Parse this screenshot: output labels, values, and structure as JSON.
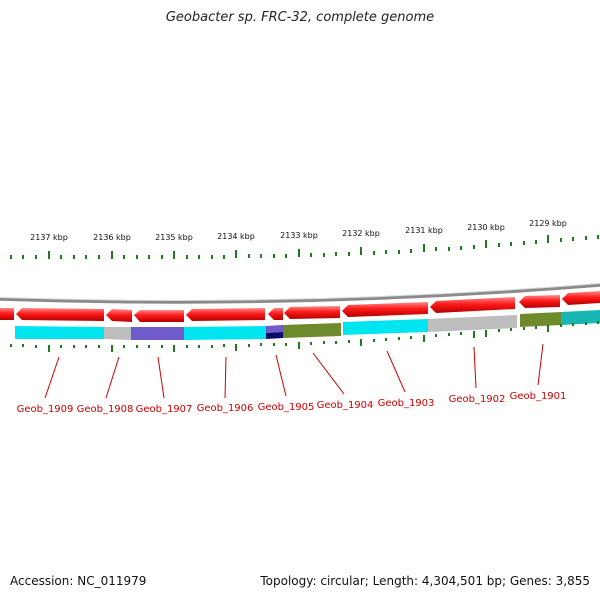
{
  "title": "Geobacter sp. FRC-32, complete genome",
  "footer": {
    "accession": "Accession: NC_011979",
    "summary": "Topology: circular; Length: 4,304,501 bp; Genes: 3,855"
  },
  "colors": {
    "backbone": "#8a8a8a",
    "forward_gene": "#ff1a1a",
    "tick": "#1f7a1f",
    "label": "#cc0000",
    "cyan": "#00e5f0",
    "gray": "#bdbdbd",
    "purple": "#6f5bc9",
    "olive": "#6e8a2a",
    "teal": "#18b5b5",
    "navy": "#0a0a6a"
  },
  "kbp_labels": [
    "2137 kbp",
    "2136 kbp",
    "2135 kbp",
    "2134 kbp",
    "2133 kbp",
    "2132 kbp",
    "2131 kbp",
    "2130 kbp",
    "2129 kbp"
  ],
  "gene_labels": [
    "Geob_1909",
    "Geob_1908",
    "Geob_1907",
    "Geob_1906",
    "Geob_1905",
    "Geob_1904",
    "Geob_1903",
    "Geob_1902",
    "Geob_1901"
  ]
}
